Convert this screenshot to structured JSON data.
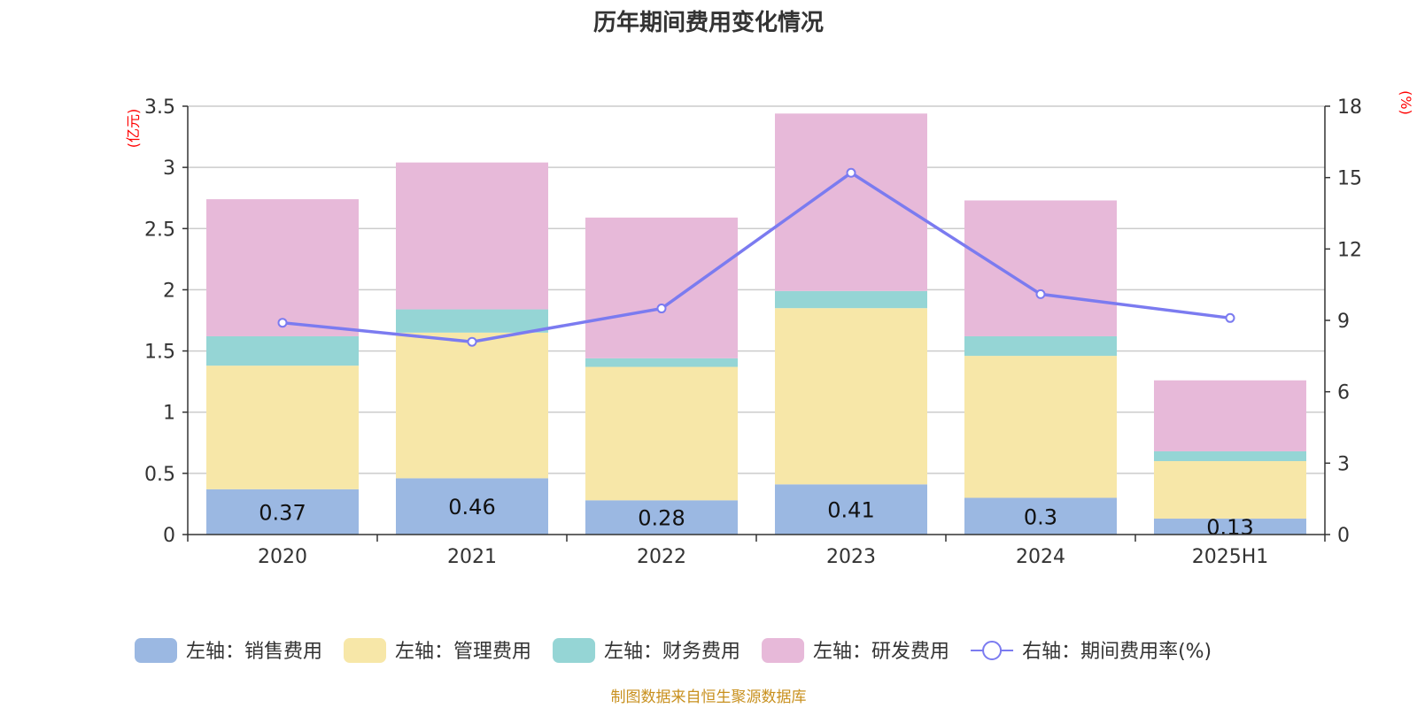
{
  "chart_data": {
    "type": "bar",
    "title": "历年期间费用变化情况",
    "categories": [
      "2020",
      "2021",
      "2022",
      "2023",
      "2024",
      "2025H1"
    ],
    "left_axis": {
      "unit": "(亿元)",
      "ylim": [
        0,
        3.5
      ],
      "ticks": [
        "0",
        "0.5",
        "1",
        "1.5",
        "2",
        "2.5",
        "3",
        "3.5"
      ]
    },
    "right_axis": {
      "unit": "(%)",
      "ylim": [
        0,
        18
      ],
      "ticks": [
        "0",
        "3",
        "6",
        "9",
        "12",
        "15",
        "18"
      ]
    },
    "series": [
      {
        "name": "左轴：销售费用",
        "type": "bar",
        "stack": true,
        "color": "#9bb8e2",
        "values": [
          0.37,
          0.46,
          0.28,
          0.41,
          0.3,
          0.13
        ],
        "labels": [
          "0.37",
          "0.46",
          "0.28",
          "0.41",
          "0.3",
          "0.13"
        ]
      },
      {
        "name": "左轴：管理费用",
        "type": "bar",
        "stack": true,
        "color": "#f7e7a8",
        "values": [
          1.01,
          1.19,
          1.09,
          1.44,
          1.16,
          0.47
        ]
      },
      {
        "name": "左轴：财务费用",
        "type": "bar",
        "stack": true,
        "color": "#95d5d5",
        "values": [
          0.24,
          0.19,
          0.07,
          0.14,
          0.16,
          0.08
        ]
      },
      {
        "name": "左轴：研发费用",
        "type": "bar",
        "stack": true,
        "color": "#e7b9d9",
        "values": [
          1.12,
          1.2,
          1.15,
          1.45,
          1.11,
          0.58
        ]
      },
      {
        "name": "右轴：期间费用率(%)",
        "type": "line",
        "axis": "right",
        "color": "#7b7bf0",
        "values": [
          8.9,
          8.1,
          9.5,
          15.2,
          10.1,
          9.1
        ]
      }
    ],
    "grid": true,
    "legend_position": "bottom"
  },
  "source_note": "制图数据来自恒生聚源数据库"
}
